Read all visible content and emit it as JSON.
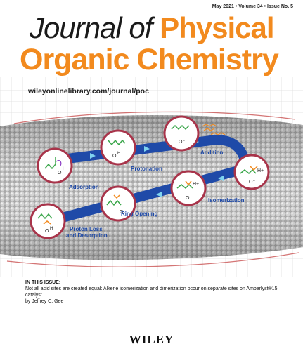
{
  "header": {
    "issue_line": "May 2021 • Volume 34 • Issue No. 5",
    "title_word1": "Journal of",
    "title_word2": "Physical",
    "title_line2": "Organic Chemistry",
    "url": "wileyonlinelibrary.com/journal/poc"
  },
  "mechanism": {
    "steps": [
      {
        "label": "Adsorption"
      },
      {
        "label": "Protonation"
      },
      {
        "label": "Addition"
      },
      {
        "label": "Isomerization"
      },
      {
        "label": "Ring Opening"
      },
      {
        "label": "Proton Loss"
      },
      {
        "label": "and Desorption"
      }
    ],
    "atom_labels": {
      "h": "H",
      "o": "O",
      "o_minus": "O⁻",
      "h_plus": "H+"
    }
  },
  "issue": {
    "heading": "IN THIS ISSUE:",
    "article_title": "Not all acid sites are created equal: Alkene isomerization and dimerization occur on separate sites on Amberlyst®15 catalyst",
    "author": "by Jeffrey C. Gee"
  },
  "publisher": "WILEY",
  "colors": {
    "accent_orange": "#f28a1e",
    "path_blue": "#1f4aa8",
    "circle_border": "#a8344a",
    "molecule_green": "#3aa64a",
    "grid_gray": "#d6d6d6"
  }
}
